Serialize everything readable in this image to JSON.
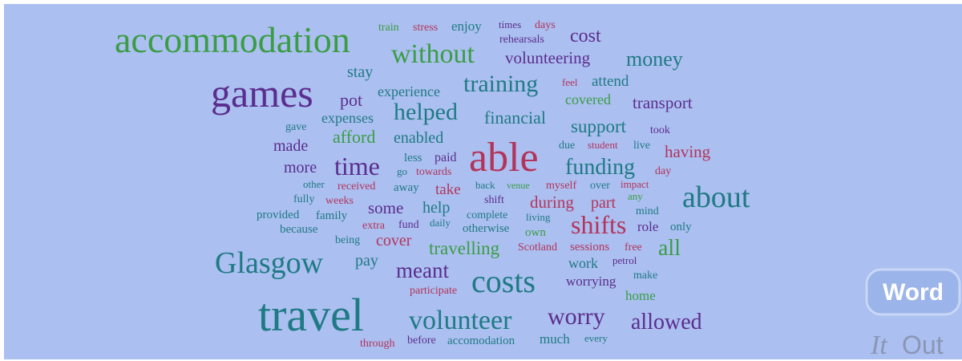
{
  "words": [
    "accommodation",
    "train",
    "stress",
    "enjoy",
    "times",
    "days",
    "rehearsals",
    "cost",
    "without",
    "volunteering",
    "money",
    "stay",
    "games",
    "training",
    "experience",
    "feel",
    "attend",
    "pot",
    "covered",
    "transport",
    "helped",
    "gave",
    "expenses",
    "financial",
    "support",
    "took",
    "afford",
    "enabled",
    "made",
    "due",
    "student",
    "live",
    "having",
    "able",
    "less",
    "paid",
    "time",
    "more",
    "go",
    "towards",
    "funding",
    "day",
    "other",
    "received",
    "away",
    "take",
    "back",
    "venue",
    "myself",
    "over",
    "impact",
    "about",
    "fully",
    "weeks",
    "shift",
    "any",
    "some",
    "help",
    "during",
    "part",
    "mind",
    "provided",
    "family",
    "complete",
    "living",
    "shifts",
    "extra",
    "fund",
    "daily",
    "otherwise",
    "own",
    "role",
    "only",
    "because",
    "being",
    "cover",
    "travelling",
    "Scotland",
    "sessions",
    "free",
    "all",
    "Glasgow",
    "pay",
    "meant",
    "work",
    "petrol",
    "costs",
    "make",
    "worrying",
    "participate",
    "home",
    "travel",
    "volunteer",
    "worry",
    "allowed",
    "through",
    "before",
    "accomodation",
    "much",
    "every"
  ],
  "logo": {
    "word": "Word",
    "it": "It",
    "out": "Out"
  }
}
